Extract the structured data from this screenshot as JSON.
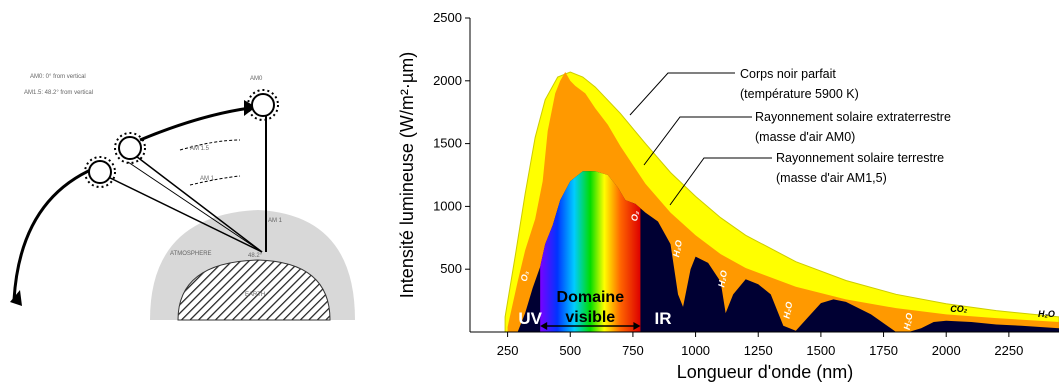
{
  "diagram": {
    "caption_line1": "AM0: 0° from vertical",
    "caption_line2": "AM1.5: 48.2° from vertical",
    "labels": [
      "AM0",
      "AM 1.5",
      "AM 1",
      "AM 1",
      "ATMOSPHERE",
      "48.2°",
      "EARTH"
    ]
  },
  "chart_data": {
    "type": "area",
    "xlabel": "Longueur d'onde (nm)",
    "ylabel": "Intensité lumineuse (W/m²·µm)",
    "xlim": [
      100,
      2450
    ],
    "ylim": [
      0,
      2500
    ],
    "xticks": [
      250,
      500,
      750,
      1000,
      1250,
      1500,
      1750,
      2000,
      2250
    ],
    "yticks": [
      500,
      1000,
      1500,
      2000,
      2500
    ],
    "series": [
      {
        "name": "Corps noir parfait",
        "name_line2": "(température 5900 K)",
        "color": "#ffff00",
        "x": [
          240,
          280,
          320,
          360,
          400,
          450,
          500,
          550,
          600,
          700,
          800,
          900,
          1000,
          1100,
          1200,
          1400,
          1600,
          1800,
          2000,
          2200,
          2450
        ],
        "y": [
          120,
          600,
          1100,
          1550,
          1850,
          2030,
          2070,
          2030,
          1950,
          1740,
          1500,
          1270,
          1080,
          910,
          770,
          560,
          410,
          300,
          225,
          170,
          120
        ]
      },
      {
        "name": "Rayonnement solaire extraterrestre",
        "name_line2": "(masse d'air AM0)",
        "color": "#ff9900",
        "x": [
          250,
          290,
          320,
          360,
          390,
          410,
          440,
          460,
          480,
          500,
          520,
          560,
          600,
          650,
          700,
          800,
          900,
          1000,
          1100,
          1200,
          1400,
          1600,
          1800,
          2000,
          2200,
          2450
        ],
        "y": [
          40,
          400,
          650,
          900,
          1200,
          1600,
          1900,
          2000,
          2070,
          2000,
          1960,
          1900,
          1780,
          1650,
          1480,
          1180,
          950,
          770,
          620,
          510,
          360,
          260,
          190,
          140,
          110,
          80
        ]
      },
      {
        "name": "Rayonnement solaire terrestre",
        "name_line2": "(masse d'air AM1,5)",
        "color": "#000033",
        "x": [
          290,
          320,
          350,
          380,
          400,
          430,
          460,
          500,
          550,
          600,
          650,
          690,
          720,
          760,
          800,
          850,
          900,
          930,
          950,
          980,
          1000,
          1050,
          1100,
          1120,
          1150,
          1200,
          1250,
          1300,
          1350,
          1400,
          1450,
          1500,
          1550,
          1600,
          1700,
          1800,
          1850,
          1900,
          1950,
          2000,
          2100,
          2200,
          2300,
          2450
        ],
        "y": [
          0,
          150,
          350,
          520,
          700,
          850,
          1050,
          1200,
          1280,
          1280,
          1250,
          1150,
          1050,
          1020,
          950,
          880,
          700,
          300,
          200,
          500,
          600,
          550,
          400,
          150,
          300,
          420,
          380,
          300,
          50,
          10,
          120,
          230,
          260,
          240,
          140,
          0,
          0,
          30,
          80,
          90,
          80,
          60,
          50,
          30
        ]
      }
    ],
    "bands": [
      {
        "label": "UV",
        "x": 340
      },
      {
        "label": "IR",
        "x": 870
      }
    ],
    "visible_label_line1": "Domaine",
    "visible_label_line2": "visible",
    "visible_range": [
      380,
      780
    ],
    "absorption_labels": [
      {
        "label": "O₃",
        "x": 330,
        "y": 440
      },
      {
        "label": "O₂",
        "x": 770,
        "y": 920
      },
      {
        "label": "H₂O",
        "x": 940,
        "y": 660
      },
      {
        "label": "H₂O",
        "x": 1120,
        "y": 420
      },
      {
        "label": "H₂O",
        "x": 1380,
        "y": 170
      },
      {
        "label": "H₂O",
        "x": 1860,
        "y": 80
      },
      {
        "label": "CO₂",
        "x": 2050,
        "y": 160
      },
      {
        "label": "H₂O",
        "x": 2400,
        "y": 120
      }
    ]
  }
}
